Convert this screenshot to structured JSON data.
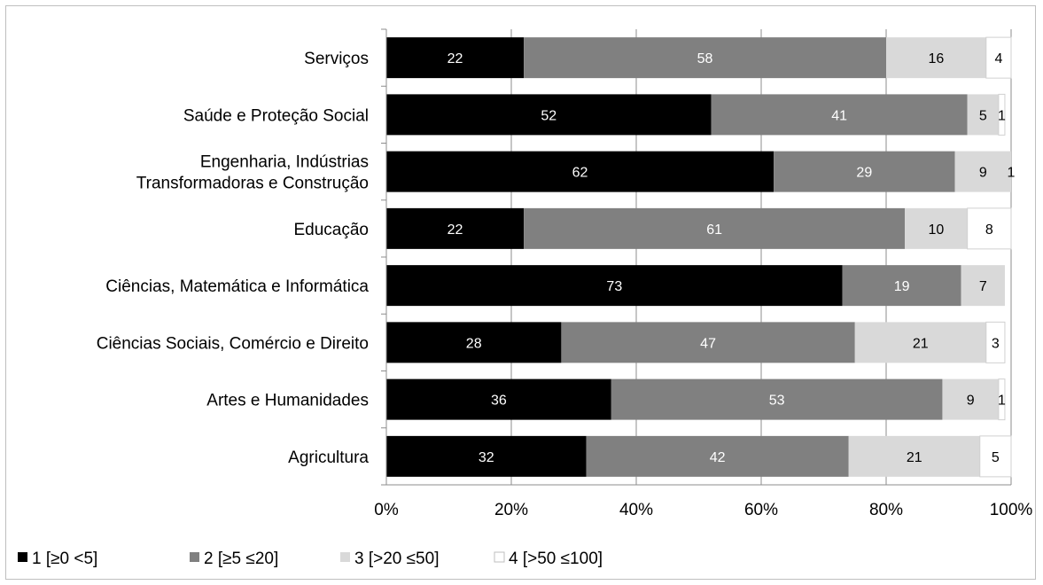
{
  "chart_data": {
    "type": "bar",
    "orientation": "horizontal",
    "stacked": "percent",
    "categories": [
      "Serviços",
      "Saúde e Proteção Social",
      "Engenharia, Indústrias Transformadoras e Construção",
      "Educação",
      "Ciências, Matemática e Informática",
      "Ciências Sociais, Comércio e Direito",
      "Artes e Humanidades",
      "Agricultura"
    ],
    "category_lines": [
      [
        "Serviços"
      ],
      [
        "Saúde e Proteção Social"
      ],
      [
        "Engenharia, Indústrias",
        "Transformadoras e Construção"
      ],
      [
        "Educação"
      ],
      [
        "Ciências, Matemática e Informática"
      ],
      [
        "Ciências Sociais, Comércio e Direito"
      ],
      [
        "Artes e Humanidades"
      ],
      [
        "Agricultura"
      ]
    ],
    "series": [
      {
        "name": "1 [≥0 <5]",
        "color": "#000000",
        "label_color": "#ffffff",
        "values": [
          22,
          52,
          62,
          22,
          73,
          28,
          36,
          32
        ]
      },
      {
        "name": "2 [≥5 ≤20]",
        "color": "#808080",
        "label_color": "#ffffff",
        "values": [
          58,
          41,
          29,
          61,
          19,
          47,
          53,
          42
        ]
      },
      {
        "name": "3 [>20 ≤50]",
        "color": "#d9d9d9",
        "label_color": "#000000",
        "values": [
          16,
          5,
          9,
          10,
          7,
          21,
          9,
          21
        ]
      },
      {
        "name": "4 [>50 ≤100]",
        "color": "#ffffff",
        "label_color": "#000000",
        "values": [
          4,
          1,
          1,
          8,
          0,
          3,
          1,
          5
        ]
      }
    ],
    "xlim": [
      0,
      100
    ],
    "xticks": [
      "0%",
      "20%",
      "40%",
      "60%",
      "80%",
      "100%"
    ],
    "grid": "vertical",
    "legend": "bottom-left",
    "title": "",
    "xlabel": "",
    "ylabel": ""
  }
}
